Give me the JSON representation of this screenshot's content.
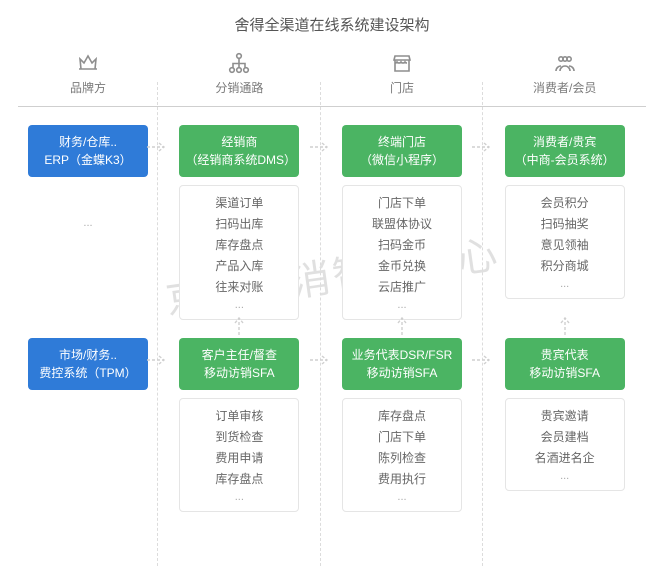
{
  "title": "舍得全渠道在线系统建设架构",
  "watermark": "京讯快消智研中心",
  "colors": {
    "green": "#4bb463",
    "blue": "#2f7bd8",
    "border": "#e5e5e5",
    "text_muted": "#7a7a7a",
    "divider": "#cfcfcf",
    "dash": "#dcdcdc",
    "arrow": "#cfcfcf",
    "watermark": "rgba(0,0,0,0.12)",
    "background": "#ffffff"
  },
  "columns": [
    {
      "icon": "crown",
      "label": "品牌方"
    },
    {
      "icon": "org",
      "label": "分销通路"
    },
    {
      "icon": "store",
      "label": "门店"
    },
    {
      "icon": "people",
      "label": "消费者/会员"
    }
  ],
  "row1": {
    "c0": {
      "title": "财务/仓库..",
      "sub": "ERP（金蝶K3）"
    },
    "c1": {
      "title": "经销商",
      "sub": "（经销商系统DMS）",
      "items": [
        "渠道订单",
        "扫码出库",
        "库存盘点",
        "产品入库",
        "往来对账"
      ]
    },
    "c2": {
      "title": "终端门店",
      "sub": "（微信小程序）",
      "items": [
        "门店下单",
        "联盟体协议",
        "扫码金币",
        "金币兑换",
        "云店推广"
      ]
    },
    "c3": {
      "title": "消费者/贵宾",
      "sub": "（中商-会员系统）",
      "items": [
        "会员积分",
        "扫码抽奖",
        "意见领袖",
        "积分商城"
      ]
    }
  },
  "row2": {
    "c0": {
      "title": "市场/财务..",
      "sub": "费控系统（TPM）"
    },
    "c1": {
      "title": "客户主任/督查",
      "sub": "移动访销SFA",
      "items": [
        "订单审核",
        "到货检查",
        "费用申请",
        "库存盘点"
      ]
    },
    "c2": {
      "title": "业务代表DSR/FSR",
      "sub": "移动访销SFA",
      "items": [
        "库存盘点",
        "门店下单",
        "陈列检查",
        "费用执行"
      ]
    },
    "c3": {
      "title": "贵宾代表",
      "sub": "移动访销SFA",
      "items": [
        "贵宾邀请",
        "会员建档",
        "名酒进名企"
      ]
    }
  },
  "ellipsis": "..."
}
